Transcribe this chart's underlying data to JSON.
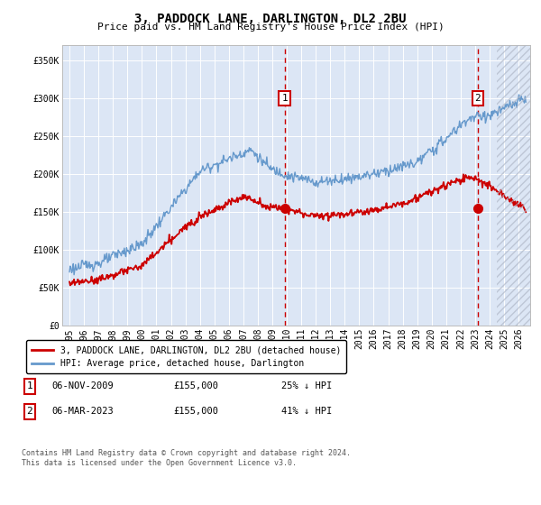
{
  "title": "3, PADDOCK LANE, DARLINGTON, DL2 2BU",
  "subtitle": "Price paid vs. HM Land Registry's House Price Index (HPI)",
  "legend_label_red": "3, PADDOCK LANE, DARLINGTON, DL2 2BU (detached house)",
  "legend_label_blue": "HPI: Average price, detached house, Darlington",
  "annotation1_label": "1",
  "annotation1_date": "06-NOV-2009",
  "annotation1_price": "£155,000",
  "annotation1_pct": "25% ↓ HPI",
  "annotation2_label": "2",
  "annotation2_date": "06-MAR-2023",
  "annotation2_price": "£155,000",
  "annotation2_pct": "41% ↓ HPI",
  "footer": "Contains HM Land Registry data © Crown copyright and database right 2024.\nThis data is licensed under the Open Government Licence v3.0.",
  "ylim": [
    0,
    370000
  ],
  "yticks": [
    0,
    50000,
    100000,
    150000,
    200000,
    250000,
    300000,
    350000
  ],
  "ytick_labels": [
    "£0",
    "£50K",
    "£100K",
    "£150K",
    "£200K",
    "£250K",
    "£300K",
    "£350K"
  ],
  "vline1_x": 2009.85,
  "vline2_x": 2023.18,
  "bg_color_left": "#e8eef8",
  "bg_color_right": "#dce6f5",
  "hatch_start_x": 2024.5,
  "xlim_left": 1994.5,
  "xlim_right": 2026.8,
  "red_color": "#cc0000",
  "blue_color": "#6699cc",
  "grid_color": "#ffffff",
  "marker1_y": 300000,
  "marker2_y": 300000,
  "title_fontsize": 10,
  "subtitle_fontsize": 8,
  "tick_fontsize": 7,
  "legend_fontsize": 7,
  "ann_fontsize": 7.5,
  "footer_fontsize": 6
}
